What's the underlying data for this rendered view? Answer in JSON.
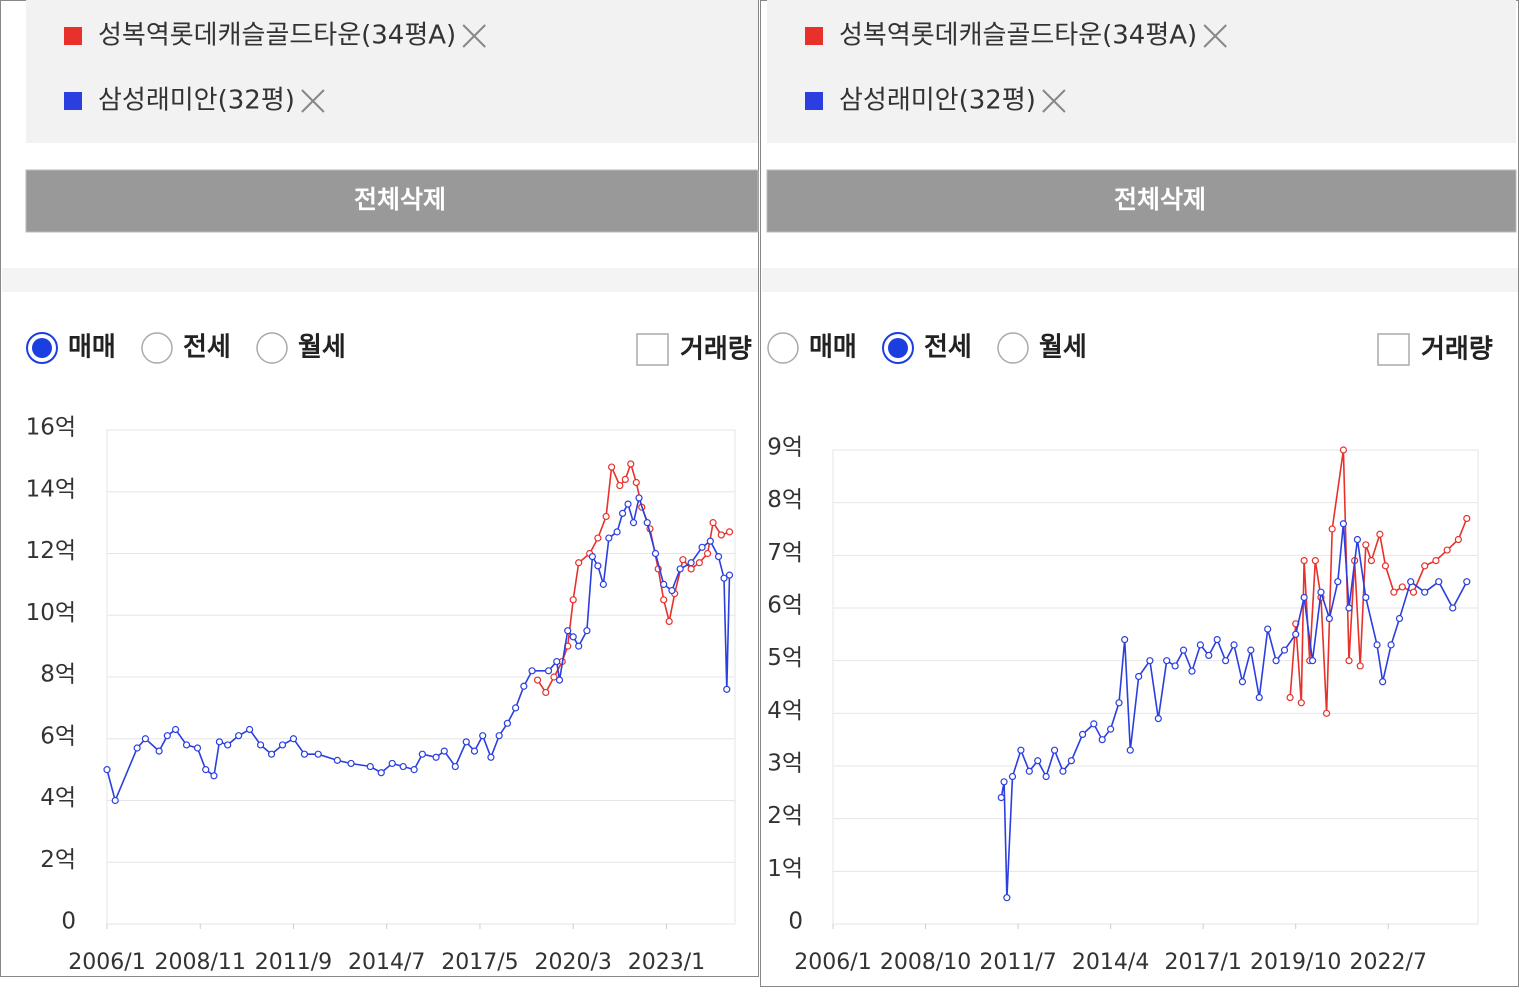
{
  "panels": [
    {
      "button": "전체삭제",
      "radios": [
        "매매",
        "전세",
        "월세"
      ],
      "selected": 0,
      "checkbox": "거래량"
    },
    {
      "button": "전체삭제",
      "radios": [
        "매매",
        "전세",
        "월세"
      ],
      "selected": 1,
      "checkbox": "거래량"
    }
  ],
  "chart_data": [
    {
      "type": "line",
      "xlim": [
        "2006/1",
        "2025/2"
      ],
      "xticks": [
        "2006/1",
        "2008/11",
        "2011/9",
        "2014/7",
        "2017/5",
        "2020/3",
        "2023/1"
      ],
      "ylim": [
        0,
        16
      ],
      "yticks": [
        0,
        {
          "value": 2,
          "label": "2억"
        },
        {
          "value": 4,
          "label": "4억"
        },
        {
          "value": 6,
          "label": "6억"
        },
        {
          "value": 8,
          "label": "8억"
        },
        {
          "value": 10,
          "label": "10억"
        },
        {
          "value": 12,
          "label": "12억"
        },
        {
          "value": 14,
          "label": "14억"
        },
        {
          "value": 16,
          "label": "16억"
        }
      ],
      "grid": true,
      "series": [
        {
          "name": "성복역롯데캐슬골드타운(34평A)",
          "color": "#e8312a",
          "x": [
            "2019/2",
            "2019/5",
            "2019/8",
            "2019/11",
            "2020/1",
            "2020/3",
            "2020/5",
            "2020/9",
            "2020/12",
            "2021/3",
            "2021/5",
            "2021/8",
            "2021/10",
            "2021/12",
            "2022/2",
            "2022/4",
            "2022/7",
            "2022/10",
            "2022/12",
            "2023/2",
            "2023/4",
            "2023/7",
            "2023/10",
            "2024/1",
            "2024/4",
            "2024/6",
            "2024/9",
            "2024/12"
          ],
          "values": [
            7.9,
            7.5,
            8.0,
            8.5,
            9.0,
            10.5,
            11.7,
            12.0,
            12.5,
            13.2,
            14.8,
            14.2,
            14.4,
            14.9,
            14.3,
            13.5,
            12.8,
            11.5,
            10.5,
            9.8,
            10.7,
            11.8,
            11.5,
            11.7,
            12.0,
            13.0,
            12.6,
            12.7
          ]
        },
        {
          "name": "삼성래미안(32평)",
          "color": "#2b3fe0",
          "x": [
            "2006/1",
            "2006/4",
            "2006/12",
            "2007/3",
            "2007/8",
            "2007/11",
            "2008/2",
            "2008/6",
            "2008/10",
            "2009/1",
            "2009/4",
            "2009/6",
            "2009/9",
            "2010/1",
            "2010/5",
            "2010/9",
            "2011/1",
            "2011/5",
            "2011/9",
            "2012/1",
            "2012/6",
            "2013/1",
            "2013/6",
            "2014/1",
            "2014/5",
            "2014/9",
            "2015/1",
            "2015/5",
            "2015/8",
            "2016/1",
            "2016/4",
            "2016/8",
            "2016/12",
            "2017/3",
            "2017/6",
            "2017/9",
            "2017/12",
            "2018/3",
            "2018/6",
            "2018/9",
            "2018/12",
            "2019/6",
            "2019/9",
            "2019/10",
            "2020/1",
            "2020/3",
            "2020/5",
            "2020/8",
            "2020/10",
            "2020/12",
            "2021/2",
            "2021/4",
            "2021/7",
            "2021/9",
            "2021/11",
            "2022/1",
            "2022/3",
            "2022/6",
            "2022/9",
            "2022/12",
            "2023/3",
            "2023/6",
            "2023/10",
            "2024/2",
            "2024/5",
            "2024/8",
            "2024/10",
            "2024/11",
            "2024/12"
          ],
          "values": [
            5.0,
            4.0,
            5.7,
            6.0,
            5.6,
            6.1,
            6.3,
            5.8,
            5.7,
            5.0,
            4.8,
            5.9,
            5.8,
            6.1,
            6.3,
            5.8,
            5.5,
            5.8,
            6.0,
            5.5,
            5.5,
            5.3,
            5.2,
            5.1,
            4.9,
            5.2,
            5.1,
            5.0,
            5.5,
            5.4,
            5.6,
            5.1,
            5.9,
            5.6,
            6.1,
            5.4,
            6.1,
            6.5,
            7.0,
            7.7,
            8.2,
            8.2,
            8.5,
            7.9,
            9.5,
            9.3,
            9.0,
            9.5,
            11.9,
            11.6,
            11.0,
            12.5,
            12.7,
            13.3,
            13.6,
            13.0,
            13.8,
            13.0,
            12.0,
            11.0,
            10.8,
            11.5,
            11.7,
            12.2,
            12.4,
            11.9,
            11.2,
            7.6,
            11.3
          ]
        }
      ]
    },
    {
      "type": "line",
      "xlim": [
        "2006/1",
        "2025/3"
      ],
      "xticks": [
        "2006/1",
        "2008/10",
        "2011/7",
        "2014/4",
        "2017/1",
        "2019/10",
        "2022/7"
      ],
      "ylim": [
        0,
        9
      ],
      "yticks": [
        0,
        {
          "value": 1,
          "label": "1억"
        },
        {
          "value": 2,
          "label": "2억"
        },
        {
          "value": 3,
          "label": "3억"
        },
        {
          "value": 4,
          "label": "4억"
        },
        {
          "value": 5,
          "label": "5억"
        },
        {
          "value": 6,
          "label": "6억"
        },
        {
          "value": 7,
          "label": "7억"
        },
        {
          "value": 8,
          "label": "8억"
        },
        {
          "value": 9,
          "label": "9억"
        }
      ],
      "grid": true,
      "series": [
        {
          "name": "성복역롯데캐슬골드타운(34평A)",
          "color": "#e8312a",
          "x": [
            "2019/8",
            "2019/10",
            "2019/12",
            "2020/1",
            "2020/3",
            "2020/5",
            "2020/7",
            "2020/9",
            "2020/11",
            "2021/3",
            "2021/5",
            "2021/7",
            "2021/9",
            "2021/11",
            "2022/1",
            "2022/4",
            "2022/6",
            "2022/9",
            "2022/12",
            "2023/4",
            "2023/8",
            "2023/12",
            "2024/4",
            "2024/8",
            "2024/11"
          ],
          "values": [
            4.3,
            5.7,
            4.2,
            6.9,
            5.0,
            6.9,
            6.2,
            4.0,
            7.5,
            9.0,
            5.0,
            6.9,
            4.9,
            7.2,
            6.9,
            7.4,
            6.8,
            6.3,
            6.4,
            6.3,
            6.8,
            6.9,
            7.1,
            7.3,
            7.7
          ]
        },
        {
          "name": "삼성래미안(32평)",
          "color": "#2b3fe0",
          "x": [
            "2011/1",
            "2011/2",
            "2011/3",
            "2011/5",
            "2011/8",
            "2011/11",
            "2012/2",
            "2012/5",
            "2012/8",
            "2012/11",
            "2013/2",
            "2013/6",
            "2013/10",
            "2014/1",
            "2014/4",
            "2014/7",
            "2014/9",
            "2014/11",
            "2015/2",
            "2015/6",
            "2015/9",
            "2015/12",
            "2016/3",
            "2016/6",
            "2016/9",
            "2016/12",
            "2017/3",
            "2017/6",
            "2017/9",
            "2017/12",
            "2018/3",
            "2018/6",
            "2018/9",
            "2018/12",
            "2019/3",
            "2019/6",
            "2019/10",
            "2020/1",
            "2020/4",
            "2020/7",
            "2020/10",
            "2021/1",
            "2021/3",
            "2021/5",
            "2021/8",
            "2021/11",
            "2022/3",
            "2022/5",
            "2022/8",
            "2022/11",
            "2023/3",
            "2023/8",
            "2024/1",
            "2024/6",
            "2024/11"
          ],
          "values": [
            2.4,
            2.7,
            0.5,
            2.8,
            3.3,
            2.9,
            3.1,
            2.8,
            3.3,
            2.9,
            3.1,
            3.6,
            3.8,
            3.5,
            3.7,
            4.2,
            5.4,
            3.3,
            4.7,
            5.0,
            3.9,
            5.0,
            4.9,
            5.2,
            4.8,
            5.3,
            5.1,
            5.4,
            5.0,
            5.3,
            4.6,
            5.2,
            4.3,
            5.6,
            5.0,
            5.2,
            5.5,
            6.2,
            5.0,
            6.3,
            5.8,
            6.5,
            7.6,
            6.0,
            7.3,
            6.2,
            5.3,
            4.6,
            5.3,
            5.8,
            6.5,
            6.3,
            6.5,
            6.0,
            6.5
          ]
        }
      ]
    }
  ]
}
